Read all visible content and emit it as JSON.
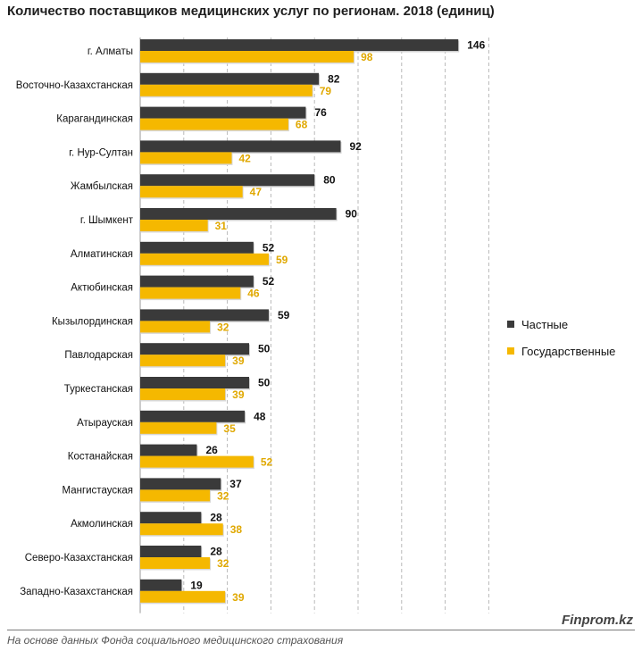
{
  "colors": {
    "private": "#3a3a3a",
    "public": "#f5b800",
    "public_label": "#e0a800",
    "grid": "#b8b8b8"
  },
  "chart_data": {
    "type": "bar",
    "orientation": "horizontal",
    "title": "Количество поставщиков медицинских услуг по регионам. 2018  (единиц)",
    "xlim": [
      0,
      160
    ],
    "grid": true,
    "legend_position": "right",
    "categories": [
      "г. Алматы",
      "Восточно-Казахстанская",
      "Карагандинская",
      "г. Нур-Султан",
      "Жамбылская",
      "г. Шымкент",
      "Алматинская",
      "Актюбинская",
      "Кызылординская",
      "Павлодарская",
      "Туркестанская",
      "Атырауская",
      "Костанайская",
      "Мангистауская",
      "Акмолинская",
      "Северо-Казахстанская",
      "Западно-Казахстанская"
    ],
    "series": [
      {
        "name": "Частные",
        "values": [
          146,
          82,
          76,
          92,
          80,
          90,
          52,
          52,
          59,
          50,
          50,
          48,
          26,
          37,
          28,
          28,
          19
        ]
      },
      {
        "name": "Государственные",
        "values": [
          98,
          79,
          68,
          42,
          47,
          31,
          59,
          46,
          32,
          39,
          39,
          35,
          52,
          32,
          38,
          32,
          39
        ]
      }
    ]
  },
  "footer": {
    "brand": "Finprom.kz",
    "source": "На основе данных Фонда социального медицинского страхования"
  }
}
